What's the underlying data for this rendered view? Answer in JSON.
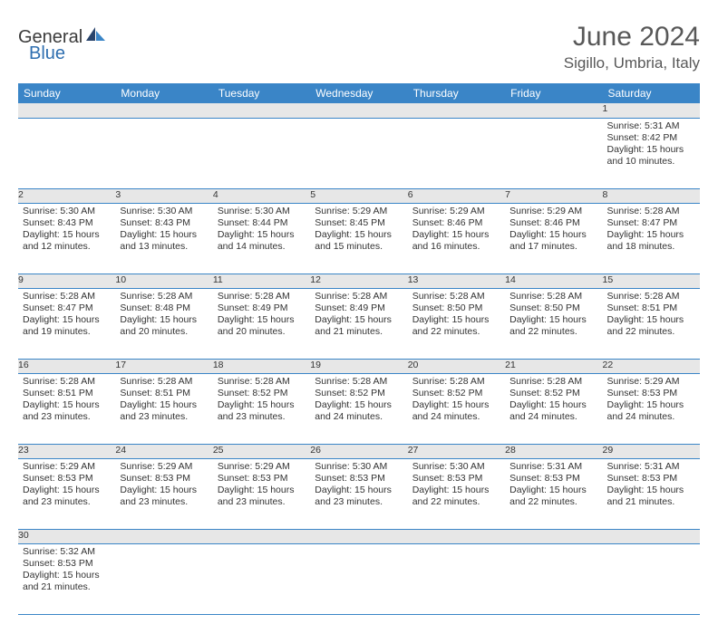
{
  "brand": {
    "part1": "General",
    "part2": "Blue"
  },
  "title": "June 2024",
  "location": "Sigillo, Umbria, Italy",
  "colors": {
    "header_bg": "#3a85c7",
    "header_fg": "#ffffff",
    "daynum_bg": "#e7e7e7",
    "text": "#333333",
    "logo_blue": "#2f6fb0"
  },
  "day_headers": [
    "Sunday",
    "Monday",
    "Tuesday",
    "Wednesday",
    "Thursday",
    "Friday",
    "Saturday"
  ],
  "weeks": [
    [
      null,
      null,
      null,
      null,
      null,
      null,
      {
        "n": "1",
        "sr": "Sunrise: 5:31 AM",
        "ss": "Sunset: 8:42 PM",
        "dl": "Daylight: 15 hours and 10 minutes."
      }
    ],
    [
      {
        "n": "2",
        "sr": "Sunrise: 5:30 AM",
        "ss": "Sunset: 8:43 PM",
        "dl": "Daylight: 15 hours and 12 minutes."
      },
      {
        "n": "3",
        "sr": "Sunrise: 5:30 AM",
        "ss": "Sunset: 8:43 PM",
        "dl": "Daylight: 15 hours and 13 minutes."
      },
      {
        "n": "4",
        "sr": "Sunrise: 5:30 AM",
        "ss": "Sunset: 8:44 PM",
        "dl": "Daylight: 15 hours and 14 minutes."
      },
      {
        "n": "5",
        "sr": "Sunrise: 5:29 AM",
        "ss": "Sunset: 8:45 PM",
        "dl": "Daylight: 15 hours and 15 minutes."
      },
      {
        "n": "6",
        "sr": "Sunrise: 5:29 AM",
        "ss": "Sunset: 8:46 PM",
        "dl": "Daylight: 15 hours and 16 minutes."
      },
      {
        "n": "7",
        "sr": "Sunrise: 5:29 AM",
        "ss": "Sunset: 8:46 PM",
        "dl": "Daylight: 15 hours and 17 minutes."
      },
      {
        "n": "8",
        "sr": "Sunrise: 5:28 AM",
        "ss": "Sunset: 8:47 PM",
        "dl": "Daylight: 15 hours and 18 minutes."
      }
    ],
    [
      {
        "n": "9",
        "sr": "Sunrise: 5:28 AM",
        "ss": "Sunset: 8:47 PM",
        "dl": "Daylight: 15 hours and 19 minutes."
      },
      {
        "n": "10",
        "sr": "Sunrise: 5:28 AM",
        "ss": "Sunset: 8:48 PM",
        "dl": "Daylight: 15 hours and 20 minutes."
      },
      {
        "n": "11",
        "sr": "Sunrise: 5:28 AM",
        "ss": "Sunset: 8:49 PM",
        "dl": "Daylight: 15 hours and 20 minutes."
      },
      {
        "n": "12",
        "sr": "Sunrise: 5:28 AM",
        "ss": "Sunset: 8:49 PM",
        "dl": "Daylight: 15 hours and 21 minutes."
      },
      {
        "n": "13",
        "sr": "Sunrise: 5:28 AM",
        "ss": "Sunset: 8:50 PM",
        "dl": "Daylight: 15 hours and 22 minutes."
      },
      {
        "n": "14",
        "sr": "Sunrise: 5:28 AM",
        "ss": "Sunset: 8:50 PM",
        "dl": "Daylight: 15 hours and 22 minutes."
      },
      {
        "n": "15",
        "sr": "Sunrise: 5:28 AM",
        "ss": "Sunset: 8:51 PM",
        "dl": "Daylight: 15 hours and 22 minutes."
      }
    ],
    [
      {
        "n": "16",
        "sr": "Sunrise: 5:28 AM",
        "ss": "Sunset: 8:51 PM",
        "dl": "Daylight: 15 hours and 23 minutes."
      },
      {
        "n": "17",
        "sr": "Sunrise: 5:28 AM",
        "ss": "Sunset: 8:51 PM",
        "dl": "Daylight: 15 hours and 23 minutes."
      },
      {
        "n": "18",
        "sr": "Sunrise: 5:28 AM",
        "ss": "Sunset: 8:52 PM",
        "dl": "Daylight: 15 hours and 23 minutes."
      },
      {
        "n": "19",
        "sr": "Sunrise: 5:28 AM",
        "ss": "Sunset: 8:52 PM",
        "dl": "Daylight: 15 hours and 24 minutes."
      },
      {
        "n": "20",
        "sr": "Sunrise: 5:28 AM",
        "ss": "Sunset: 8:52 PM",
        "dl": "Daylight: 15 hours and 24 minutes."
      },
      {
        "n": "21",
        "sr": "Sunrise: 5:28 AM",
        "ss": "Sunset: 8:52 PM",
        "dl": "Daylight: 15 hours and 24 minutes."
      },
      {
        "n": "22",
        "sr": "Sunrise: 5:29 AM",
        "ss": "Sunset: 8:53 PM",
        "dl": "Daylight: 15 hours and 24 minutes."
      }
    ],
    [
      {
        "n": "23",
        "sr": "Sunrise: 5:29 AM",
        "ss": "Sunset: 8:53 PM",
        "dl": "Daylight: 15 hours and 23 minutes."
      },
      {
        "n": "24",
        "sr": "Sunrise: 5:29 AM",
        "ss": "Sunset: 8:53 PM",
        "dl": "Daylight: 15 hours and 23 minutes."
      },
      {
        "n": "25",
        "sr": "Sunrise: 5:29 AM",
        "ss": "Sunset: 8:53 PM",
        "dl": "Daylight: 15 hours and 23 minutes."
      },
      {
        "n": "26",
        "sr": "Sunrise: 5:30 AM",
        "ss": "Sunset: 8:53 PM",
        "dl": "Daylight: 15 hours and 23 minutes."
      },
      {
        "n": "27",
        "sr": "Sunrise: 5:30 AM",
        "ss": "Sunset: 8:53 PM",
        "dl": "Daylight: 15 hours and 22 minutes."
      },
      {
        "n": "28",
        "sr": "Sunrise: 5:31 AM",
        "ss": "Sunset: 8:53 PM",
        "dl": "Daylight: 15 hours and 22 minutes."
      },
      {
        "n": "29",
        "sr": "Sunrise: 5:31 AM",
        "ss": "Sunset: 8:53 PM",
        "dl": "Daylight: 15 hours and 21 minutes."
      }
    ],
    [
      {
        "n": "30",
        "sr": "Sunrise: 5:32 AM",
        "ss": "Sunset: 8:53 PM",
        "dl": "Daylight: 15 hours and 21 minutes."
      },
      null,
      null,
      null,
      null,
      null,
      null
    ]
  ]
}
